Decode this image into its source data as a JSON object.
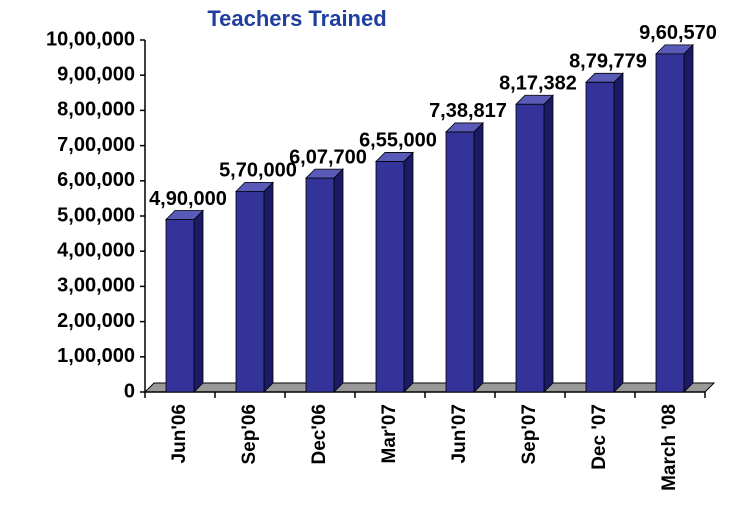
{
  "chart_data": {
    "type": "bar3d",
    "title": "Teachers Trained",
    "categories": [
      "Jun'06",
      "Sep'06",
      "Dec'06",
      "Mar'07",
      "Jun'07",
      "Sep'07",
      "Dec '07",
      "March '08"
    ],
    "values": [
      490000,
      570000,
      607700,
      655000,
      738817,
      817382,
      879779,
      960570
    ],
    "value_labels": [
      "4,90,000",
      "5,70,000",
      "6,07,700",
      "6,55,000",
      "7,38,817",
      "8,17,382",
      "8,79,779",
      "9,60,570"
    ],
    "color": "#333399",
    "ylim": [
      0,
      1000000
    ],
    "yticks": [
      0,
      {
        "value": 100000,
        "label": "1,00,000"
      },
      {
        "value": 200000,
        "label": "2,00,000"
      },
      {
        "value": 300000,
        "label": "3,00,000"
      },
      {
        "value": 400000,
        "label": "4,00,000"
      },
      {
        "value": 500000,
        "label": "5,00,000"
      },
      {
        "value": 600000,
        "label": "6,00,000"
      },
      {
        "value": 700000,
        "label": "7,00,000"
      },
      {
        "value": 800000,
        "label": "8,00,000"
      },
      {
        "value": 900000,
        "label": "9,00,000"
      },
      {
        "value": 1000000,
        "label": "10,00,000"
      }
    ]
  }
}
